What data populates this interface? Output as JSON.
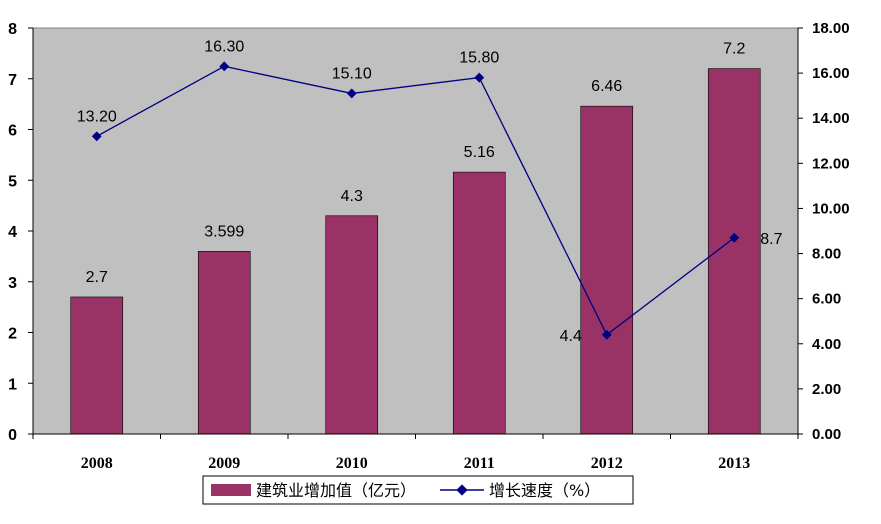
{
  "chart_data": {
    "type": "bar+line",
    "categories": [
      "2008",
      "2009",
      "2010",
      "2011",
      "2012",
      "2013"
    ],
    "series": [
      {
        "name": "建筑业增加值（亿元）",
        "type": "bar",
        "axis": "left",
        "values": [
          2.7,
          3.599,
          4.3,
          5.16,
          6.46,
          7.2
        ],
        "labels": [
          "2.7",
          "3.599",
          "4.3",
          "5.16",
          "6.46",
          "7.2"
        ],
        "color": "#993366"
      },
      {
        "name": "增长速度（%）",
        "type": "line",
        "axis": "right",
        "values": [
          13.2,
          16.3,
          15.1,
          15.8,
          4.4,
          8.7
        ],
        "labels": [
          "13.20",
          "16.30",
          "15.10",
          "15.80",
          "4.4",
          "8.7"
        ],
        "color": "#000080"
      }
    ],
    "y_left": {
      "min": 0,
      "max": 8,
      "ticks": [
        "0",
        "1",
        "2",
        "3",
        "4",
        "5",
        "6",
        "7",
        "8"
      ]
    },
    "y_right": {
      "min": 0,
      "max": 18,
      "ticks": [
        "0.00",
        "2.00",
        "4.00",
        "6.00",
        "8.00",
        "10.00",
        "12.00",
        "14.00",
        "16.00",
        "18.00"
      ]
    },
    "plot_background": "#c0c0c0",
    "grid": false,
    "legend_position": "bottom"
  }
}
